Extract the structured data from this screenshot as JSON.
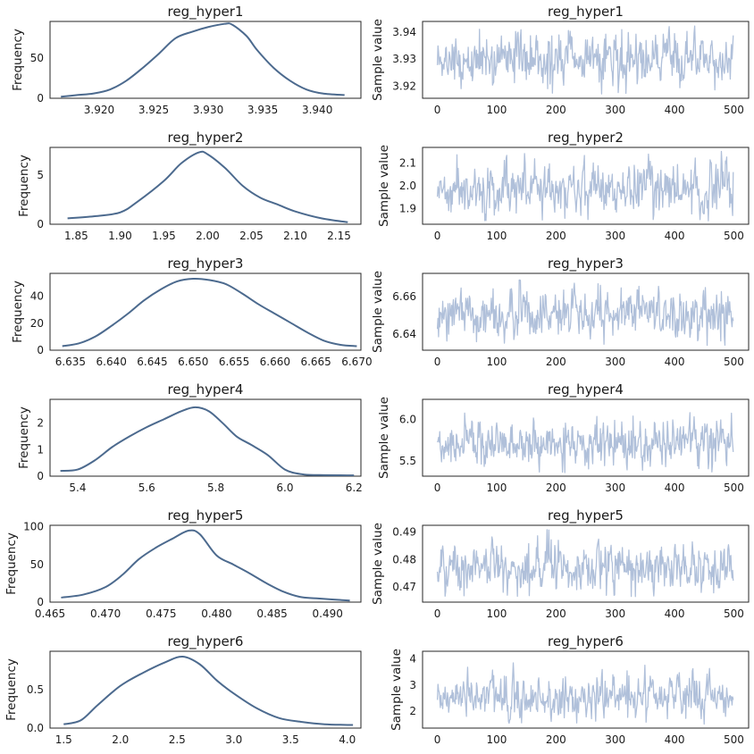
{
  "chart_data": [
    {
      "type": "line",
      "panel": "density",
      "title": "reg_hyper1",
      "ylabel": "Frequency",
      "xlim": [
        3.9155,
        3.944
      ],
      "ylim": [
        0,
        96
      ],
      "xticks": [
        3.92,
        3.925,
        3.93,
        3.935,
        3.94
      ],
      "xtick_labels": [
        "3.920",
        "3.925",
        "3.930",
        "3.935",
        "3.940"
      ],
      "yticks": [
        0,
        50
      ],
      "ytick_labels": [
        "0",
        "50"
      ],
      "color": "#4c6a8e",
      "x": [
        3.9165,
        3.918,
        3.9195,
        3.921,
        3.9225,
        3.924,
        3.9255,
        3.927,
        3.9285,
        3.93,
        3.9315,
        3.9322,
        3.9335,
        3.9345,
        3.936,
        3.9375,
        3.939,
        3.9405,
        3.9425
      ],
      "y": [
        2,
        4,
        6,
        11,
        22,
        38,
        56,
        75,
        83,
        89,
        93,
        92,
        78,
        60,
        38,
        22,
        11,
        6,
        4
      ]
    },
    {
      "type": "line",
      "panel": "trace",
      "title": "reg_hyper1",
      "ylabel": "Sample value",
      "xlim": [
        -25,
        525
      ],
      "ylim": [
        3.9155,
        3.944
      ],
      "xticks": [
        0,
        100,
        200,
        300,
        400,
        500
      ],
      "xtick_labels": [
        "0",
        "100",
        "200",
        "300",
        "400",
        "500"
      ],
      "yticks": [
        3.92,
        3.93,
        3.94
      ],
      "ytick_labels": [
        "3.92",
        "3.93",
        "3.94"
      ],
      "color": "#b0c0da",
      "n_samples": 500,
      "center": 3.93,
      "spread": 0.0045,
      "min": 3.917,
      "max": 3.9425
    },
    {
      "type": "line",
      "panel": "density",
      "title": "reg_hyper2",
      "ylabel": "Frequency",
      "xlim": [
        1.82,
        2.175
      ],
      "ylim": [
        0,
        7.8
      ],
      "xticks": [
        1.85,
        1.9,
        1.95,
        2.0,
        2.05,
        2.1,
        2.15
      ],
      "xtick_labels": [
        "1.85",
        "1.90",
        "1.95",
        "2.00",
        "2.05",
        "2.10",
        "2.15"
      ],
      "yticks": [
        0,
        5
      ],
      "ytick_labels": [
        "0",
        "5"
      ],
      "color": "#4c6a8e",
      "x": [
        1.84,
        1.87,
        1.9,
        1.92,
        1.95,
        1.97,
        1.99,
        2.0,
        2.02,
        2.04,
        2.06,
        2.08,
        2.1,
        2.13,
        2.16
      ],
      "y": [
        0.6,
        0.8,
        1.2,
        2.3,
        4.4,
        6.2,
        7.3,
        7.1,
        5.7,
        3.9,
        2.7,
        2.0,
        1.3,
        0.6,
        0.2
      ]
    },
    {
      "type": "line",
      "panel": "trace",
      "title": "reg_hyper2",
      "ylabel": "Sample value",
      "xlim": [
        -25,
        525
      ],
      "ylim": [
        1.83,
        2.17
      ],
      "xticks": [
        0,
        100,
        200,
        300,
        400,
        500
      ],
      "xtick_labels": [
        "0",
        "100",
        "200",
        "300",
        "400",
        "500"
      ],
      "yticks": [
        1.9,
        2.0,
        2.1
      ],
      "ytick_labels": [
        "1.9",
        "2.0",
        "2.1"
      ],
      "color": "#b0c0da",
      "n_samples": 500,
      "center": 1.99,
      "spread": 0.055,
      "min": 1.845,
      "max": 2.155
    },
    {
      "type": "line",
      "panel": "density",
      "title": "reg_hyper3",
      "ylabel": "Frequency",
      "xlim": [
        6.6325,
        6.6705
      ],
      "ylim": [
        0,
        57
      ],
      "xticks": [
        6.635,
        6.64,
        6.645,
        6.65,
        6.655,
        6.66,
        6.665,
        6.67
      ],
      "xtick_labels": [
        "6.635",
        "6.640",
        "6.645",
        "6.650",
        "6.655",
        "6.660",
        "6.665",
        "6.670"
      ],
      "yticks": [
        0,
        20,
        40
      ],
      "ytick_labels": [
        "0",
        "20",
        "40"
      ],
      "color": "#4c6a8e",
      "x": [
        6.634,
        6.636,
        6.638,
        6.64,
        6.642,
        6.644,
        6.646,
        6.648,
        6.65,
        6.652,
        6.654,
        6.656,
        6.658,
        6.66,
        6.662,
        6.664,
        6.666,
        6.668,
        6.67
      ],
      "y": [
        3,
        5,
        10,
        18,
        27,
        37,
        45,
        51,
        53,
        52,
        49,
        42,
        34,
        27,
        20,
        13,
        7,
        4,
        3
      ]
    },
    {
      "type": "line",
      "panel": "trace",
      "title": "reg_hyper3",
      "ylabel": "Sample value",
      "xlim": [
        -25,
        525
      ],
      "ylim": [
        6.6315,
        6.6725
      ],
      "xticks": [
        0,
        100,
        200,
        300,
        400,
        500
      ],
      "xtick_labels": [
        "0",
        "100",
        "200",
        "300",
        "400",
        "500"
      ],
      "yticks": [
        6.64,
        6.66
      ],
      "ytick_labels": [
        "6.64",
        "6.66"
      ],
      "color": "#b0c0da",
      "n_samples": 500,
      "center": 6.65,
      "spread": 0.0065,
      "min": 6.634,
      "max": 6.671
    },
    {
      "type": "line",
      "panel": "density",
      "title": "reg_hyper4",
      "ylabel": "Frequency",
      "xlim": [
        5.32,
        6.22
      ],
      "ylim": [
        0,
        2.9
      ],
      "xticks": [
        5.4,
        5.6,
        5.8,
        6.0,
        6.2
      ],
      "xtick_labels": [
        "5.4",
        "5.6",
        "5.8",
        "6.0",
        "6.2"
      ],
      "yticks": [
        0,
        1,
        2
      ],
      "ytick_labels": [
        "0",
        "1",
        "2"
      ],
      "color": "#4c6a8e",
      "x": [
        5.35,
        5.4,
        5.45,
        5.5,
        5.55,
        5.6,
        5.65,
        5.7,
        5.74,
        5.78,
        5.82,
        5.86,
        5.9,
        5.95,
        6.0,
        6.05,
        6.1,
        6.2
      ],
      "y": [
        0.2,
        0.25,
        0.6,
        1.1,
        1.5,
        1.85,
        2.15,
        2.45,
        2.6,
        2.45,
        2.0,
        1.5,
        1.2,
        0.8,
        0.25,
        0.07,
        0.04,
        0.03
      ]
    },
    {
      "type": "line",
      "panel": "trace",
      "title": "reg_hyper4",
      "ylabel": "Sample value",
      "xlim": [
        -25,
        525
      ],
      "ylim": [
        5.32,
        6.24
      ],
      "xticks": [
        0,
        100,
        200,
        300,
        400,
        500
      ],
      "xtick_labels": [
        "0",
        "100",
        "200",
        "300",
        "400",
        "500"
      ],
      "yticks": [
        5.5,
        6.0
      ],
      "ytick_labels": [
        "5.5",
        "6.0"
      ],
      "color": "#b0c0da",
      "n_samples": 500,
      "center": 5.72,
      "spread": 0.13,
      "min": 5.36,
      "max": 6.2
    },
    {
      "type": "line",
      "panel": "density",
      "title": "reg_hyper5",
      "ylabel": "Frequency",
      "xlim": [
        0.465,
        0.493
      ],
      "ylim": [
        0,
        102
      ],
      "xticks": [
        0.465,
        0.47,
        0.475,
        0.48,
        0.485,
        0.49
      ],
      "xtick_labels": [
        "0.465",
        "0.470",
        "0.475",
        "0.480",
        "0.485",
        "0.490"
      ],
      "yticks": [
        0,
        50,
        100
      ],
      "ytick_labels": [
        "0",
        "50",
        "100"
      ],
      "color": "#4c6a8e",
      "x": [
        0.466,
        0.468,
        0.47,
        0.4715,
        0.473,
        0.4745,
        0.476,
        0.4775,
        0.4785,
        0.48,
        0.4815,
        0.483,
        0.4845,
        0.486,
        0.4875,
        0.489,
        0.492
      ],
      "y": [
        6,
        10,
        20,
        36,
        57,
        72,
        84,
        95,
        90,
        62,
        50,
        38,
        25,
        14,
        7,
        5,
        2
      ]
    },
    {
      "type": "line",
      "panel": "trace",
      "title": "reg_hyper5",
      "ylabel": "Sample value",
      "xlim": [
        -25,
        525
      ],
      "ylim": [
        0.4645,
        0.4925
      ],
      "xticks": [
        0,
        100,
        200,
        300,
        400,
        500
      ],
      "xtick_labels": [
        "0",
        "100",
        "200",
        "300",
        "400",
        "500"
      ],
      "yticks": [
        0.47,
        0.48,
        0.49
      ],
      "ytick_labels": [
        "0.47",
        "0.48",
        "0.49"
      ],
      "color": "#b0c0da",
      "n_samples": 500,
      "center": 0.4775,
      "spread": 0.0042,
      "min": 0.4665,
      "max": 0.4915
    },
    {
      "type": "line",
      "panel": "density",
      "title": "reg_hyper6",
      "ylabel": "Frequency",
      "xlim": [
        1.38,
        4.12
      ],
      "ylim": [
        0,
        1.0
      ],
      "xticks": [
        1.5,
        2.0,
        2.5,
        3.0,
        3.5,
        4.0
      ],
      "xtick_labels": [
        "1.5",
        "2.0",
        "2.5",
        "3.0",
        "3.5",
        "4.0"
      ],
      "yticks": [
        0,
        0.5
      ],
      "ytick_labels": [
        "0.0",
        "0.5"
      ],
      "color": "#4c6a8e",
      "x": [
        1.5,
        1.65,
        1.8,
        2.0,
        2.2,
        2.4,
        2.55,
        2.7,
        2.85,
        3.0,
        3.2,
        3.4,
        3.6,
        3.8,
        4.05
      ],
      "y": [
        0.05,
        0.1,
        0.3,
        0.55,
        0.72,
        0.86,
        0.93,
        0.83,
        0.62,
        0.45,
        0.26,
        0.13,
        0.08,
        0.05,
        0.04
      ]
    },
    {
      "type": "line",
      "panel": "trace",
      "title": "reg_hyper6",
      "ylabel": "Sample value",
      "xlim": [
        -25,
        525
      ],
      "ylim": [
        1.35,
        4.3
      ],
      "xticks": [
        0,
        100,
        200,
        300,
        400,
        500
      ],
      "xtick_labels": [
        "0",
        "100",
        "200",
        "300",
        "400",
        "500"
      ],
      "yticks": [
        2,
        3,
        4
      ],
      "ytick_labels": [
        "2",
        "3",
        "4"
      ],
      "color": "#b0c0da",
      "n_samples": 500,
      "center": 2.55,
      "spread": 0.38,
      "min": 1.5,
      "max": 4.05
    }
  ]
}
